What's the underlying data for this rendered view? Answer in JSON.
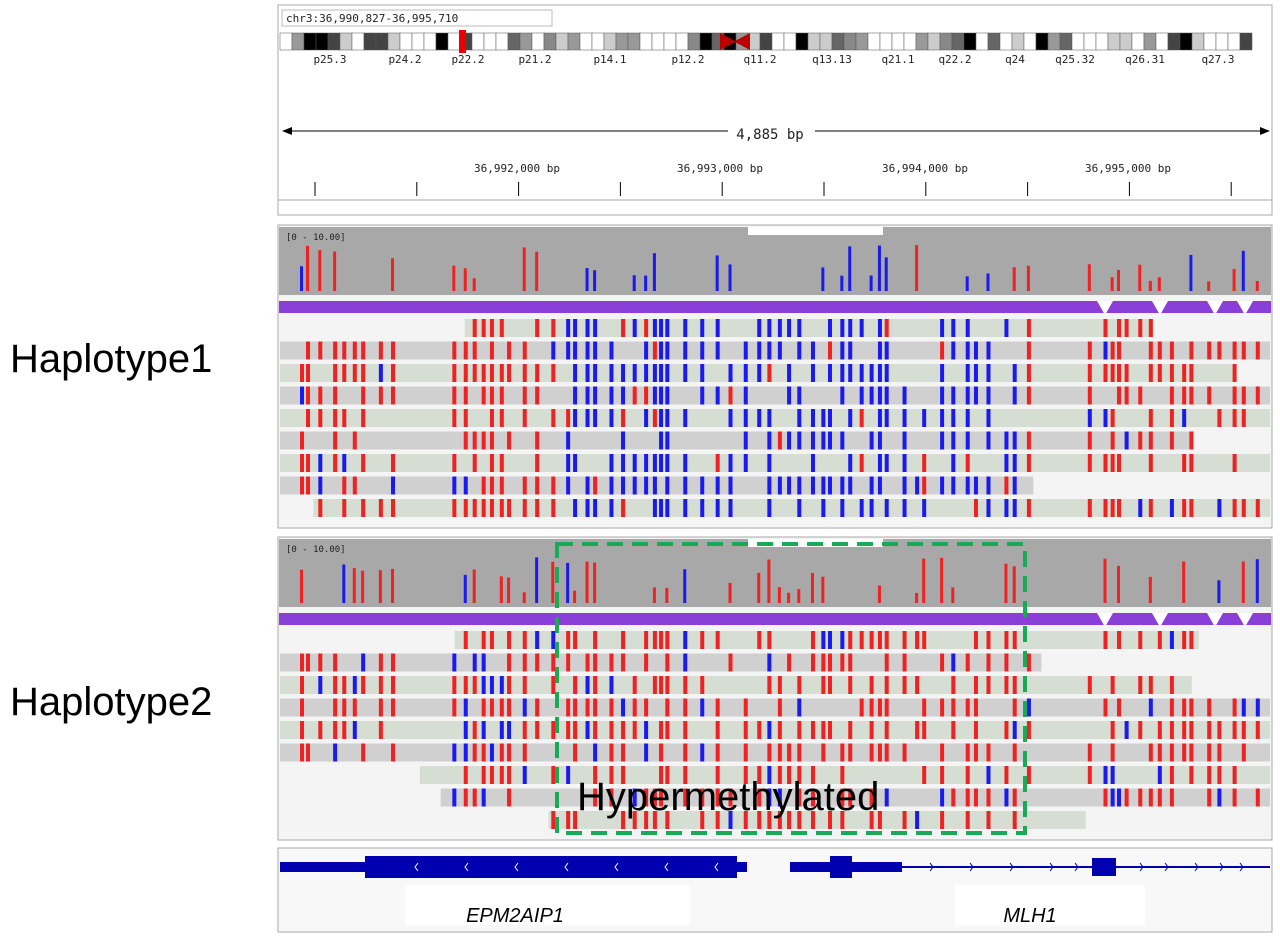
{
  "locus": "chr3:36,990,827-36,995,710",
  "cytobands": [
    "p25.3",
    "p24.2",
    "p22.2",
    "p21.2",
    "p14.1",
    "p12.2",
    "q11.2",
    "q13.13",
    "q21.1",
    "q22.2",
    "q24",
    "q25.32",
    "q26.31",
    "q27.3"
  ],
  "span": "4,885 bp",
  "ruler_ticks": [
    "36,992,000 bp",
    "36,993,000 bp",
    "36,994,000 bp",
    "36,995,000 bp"
  ],
  "tracks": [
    {
      "label": "Haplotype1",
      "range": "[0 - 10.00]"
    },
    {
      "label": "Haplotype2",
      "range": "[0 - 10.00]",
      "annotation": "Hypermethylated"
    }
  ],
  "genes": [
    "EPM2AIP1",
    "MLH1"
  ]
}
